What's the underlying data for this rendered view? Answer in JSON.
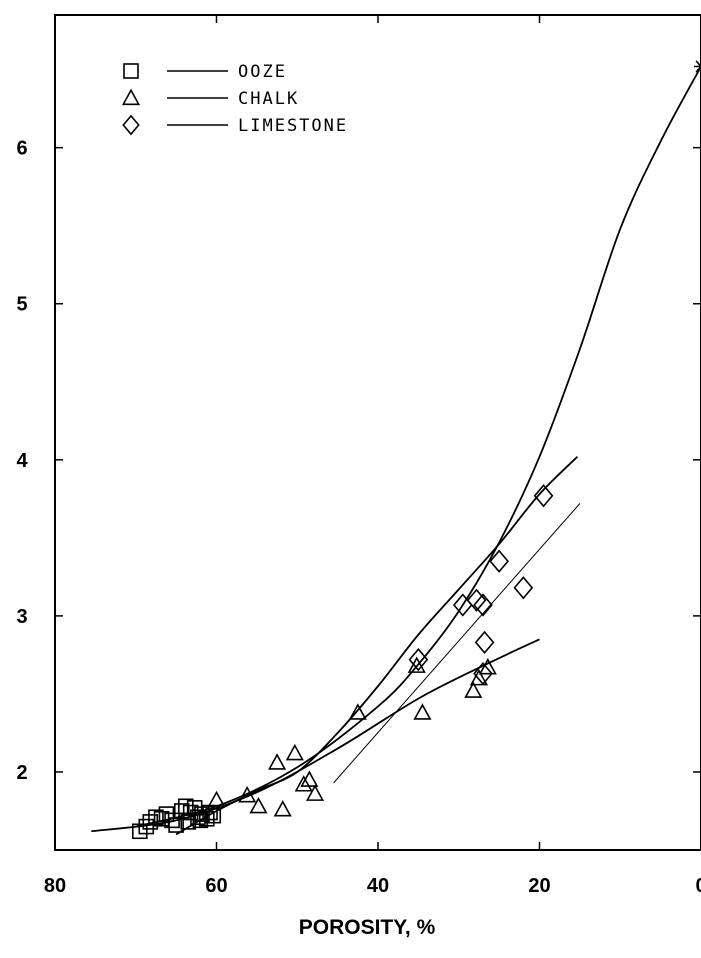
{
  "chart_data": {
    "type": "scatter",
    "title": "",
    "xlabel": "POROSITY, %",
    "ylabel": "",
    "xlim": [
      80,
      0
    ],
    "ylim": [
      1.5,
      6.85
    ],
    "x_ticks": [
      80,
      60,
      40,
      20,
      0
    ],
    "y_ticks": [
      2,
      3,
      4,
      5,
      6
    ],
    "grid": false,
    "legend_position": "top-left",
    "series": [
      {
        "name": "OOZE",
        "marker": "square",
        "points": [
          [
            69.5,
            1.62
          ],
          [
            68.7,
            1.65
          ],
          [
            68.2,
            1.68
          ],
          [
            67.5,
            1.71
          ],
          [
            66.8,
            1.7
          ],
          [
            66.2,
            1.73
          ],
          [
            65.5,
            1.69
          ],
          [
            65.0,
            1.66
          ],
          [
            64.3,
            1.75
          ],
          [
            63.8,
            1.78
          ],
          [
            63.2,
            1.74
          ],
          [
            62.7,
            1.77
          ],
          [
            62.3,
            1.71
          ],
          [
            61.8,
            1.73
          ],
          [
            61.2,
            1.7
          ],
          [
            60.8,
            1.74
          ],
          [
            60.4,
            1.72
          ],
          [
            63.5,
            1.68
          ],
          [
            62.0,
            1.69
          ]
        ]
      },
      {
        "name": "CHALK",
        "marker": "triangle",
        "points": [
          [
            60.0,
            1.82
          ],
          [
            56.2,
            1.85
          ],
          [
            54.8,
            1.78
          ],
          [
            52.5,
            2.06
          ],
          [
            51.8,
            1.76
          ],
          [
            50.3,
            2.12
          ],
          [
            49.2,
            1.92
          ],
          [
            48.5,
            1.95
          ],
          [
            47.8,
            1.86
          ],
          [
            42.5,
            2.38
          ],
          [
            35.2,
            2.68
          ],
          [
            34.5,
            2.38
          ],
          [
            28.2,
            2.52
          ],
          [
            27.5,
            2.6
          ],
          [
            26.4,
            2.67
          ]
        ]
      },
      {
        "name": "LIMESTONE",
        "marker": "diamond",
        "points": [
          [
            35.0,
            2.72
          ],
          [
            29.5,
            3.07
          ],
          [
            27.8,
            3.1
          ],
          [
            27.0,
            3.07
          ],
          [
            26.8,
            2.83
          ],
          [
            27.0,
            2.63
          ],
          [
            25.0,
            3.35
          ],
          [
            22.0,
            3.18
          ],
          [
            19.5,
            3.77
          ]
        ]
      },
      {
        "name": "",
        "marker": "asterisk",
        "points": [
          [
            0.0,
            6.52
          ]
        ]
      }
    ],
    "curves": [
      {
        "style": "solid",
        "points": [
          [
            70,
            1.65
          ],
          [
            60,
            1.78
          ],
          [
            50,
            2.03
          ],
          [
            40,
            2.42
          ],
          [
            35,
            2.69
          ],
          [
            30,
            3.03
          ],
          [
            25,
            3.47
          ],
          [
            20,
            4.02
          ],
          [
            15,
            4.71
          ],
          [
            10,
            5.48
          ],
          [
            5,
            6.04
          ],
          [
            0,
            6.52
          ]
        ]
      },
      {
        "style": "solid",
        "points": [
          [
            75.5,
            1.62
          ],
          [
            65,
            1.69
          ],
          [
            55,
            1.87
          ],
          [
            45,
            2.15
          ],
          [
            35,
            2.47
          ],
          [
            27,
            2.68
          ],
          [
            20,
            2.85
          ]
        ]
      },
      {
        "style": "solid",
        "points": [
          [
            65,
            1.6
          ],
          [
            60,
            1.75
          ],
          [
            55,
            1.88
          ],
          [
            50,
            2.0
          ],
          [
            45,
            2.25
          ],
          [
            40,
            2.55
          ],
          [
            35,
            2.88
          ],
          [
            30,
            3.17
          ],
          [
            25,
            3.46
          ],
          [
            20,
            3.78
          ],
          [
            15.3,
            4.02
          ]
        ]
      },
      {
        "style": "thin",
        "points": [
          [
            45.5,
            1.93
          ],
          [
            15.0,
            3.72
          ]
        ]
      }
    ]
  }
}
